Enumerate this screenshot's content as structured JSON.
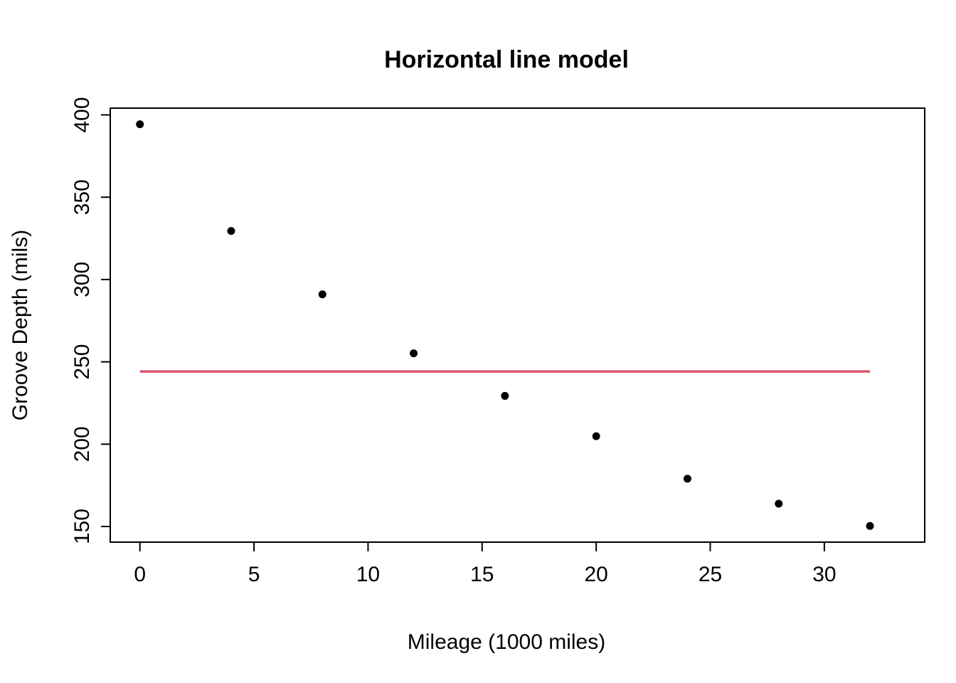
{
  "chart_data": {
    "type": "scatter",
    "title": "Horizontal line model",
    "xlabel": "Mileage (1000 miles)",
    "ylabel": "Groove Depth (mils)",
    "x": [
      0,
      4,
      8,
      12,
      16,
      20,
      24,
      28,
      32
    ],
    "y": [
      394.33,
      329.5,
      291.0,
      255.17,
      229.33,
      204.83,
      179.0,
      163.83,
      150.33
    ],
    "series": [
      {
        "name": "Groove Depth",
        "x": [
          0,
          4,
          8,
          12,
          16,
          20,
          24,
          28,
          32
        ],
        "y": [
          394.33,
          329.5,
          291.0,
          255.17,
          229.33,
          204.83,
          179.0,
          163.83,
          150.33
        ]
      }
    ],
    "hline": {
      "y": 244.15,
      "x_start": 0,
      "x_end": 32,
      "color": "#DF536B"
    },
    "x_ticks": [
      0,
      5,
      10,
      15,
      20,
      25,
      30
    ],
    "y_ticks": [
      150,
      200,
      250,
      300,
      350,
      400
    ],
    "xlim": [
      -1.3,
      34.4
    ],
    "ylim": [
      140.5,
      404.1
    ],
    "point_color": "#000000",
    "axis_color": "#000000",
    "background_color": "#ffffff",
    "grid": false,
    "legend": null
  }
}
